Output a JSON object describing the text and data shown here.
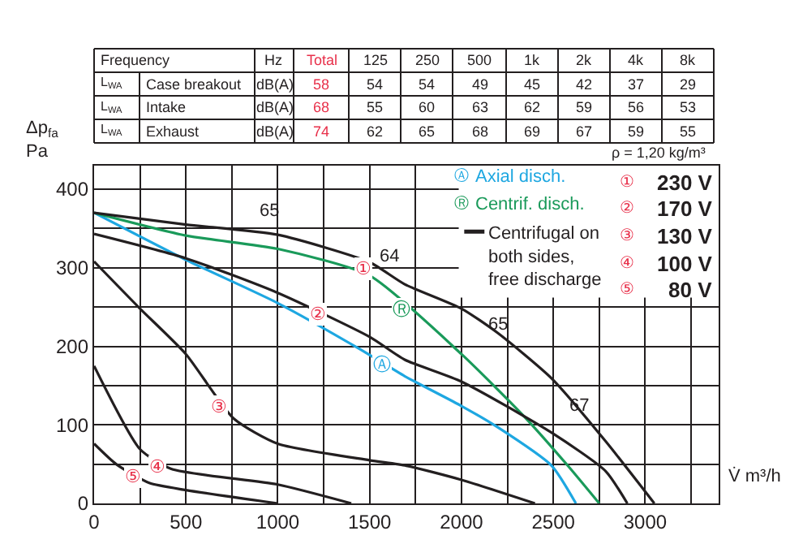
{
  "chart_data": [
    {
      "type": "other",
      "categories": [
        "Frequency",
        null,
        "Hz",
        "Total",
        "125",
        "250",
        "500",
        "1k",
        "2k",
        "4k",
        "8k"
      ],
      "colors": [
        "#231f20",
        "#231f20",
        "#231f20",
        "#e8304a",
        "#231f20",
        "#231f20",
        "#231f20",
        "#231f20",
        "#231f20",
        "#231f20",
        "#231f20"
      ],
      "cells": [
        [
          "L$_{WA}$",
          "Case breakout",
          "dB(A)",
          "58",
          "54",
          "54",
          "49",
          "45",
          "42",
          "37",
          "29"
        ],
        [
          "L$_{WA}$",
          "Intake",
          "dB(A)",
          "68",
          "55",
          "60",
          "63",
          "62",
          "59",
          "56",
          "53"
        ],
        [
          "L$_{WA}$",
          "Exhaust",
          "dB(A)",
          "74",
          "62",
          "65",
          "68",
          "69",
          "67",
          "59",
          "55"
        ]
      ]
    },
    {
      "type": "line",
      "xlabel": "V̇ m³/h",
      "ylabel": "Δp$_{fa}$\nPa",
      "xlim": [
        0,
        3400
      ],
      "ylim": [
        0,
        430
      ],
      "xticks": [
        0,
        {
          "value": 250,
          "label": null
        },
        500,
        {
          "value": 750,
          "label": null
        },
        1000,
        {
          "value": 1250,
          "label": null
        },
        1500,
        {
          "value": 1750,
          "label": null
        },
        2000,
        {
          "value": 2250,
          "label": null
        },
        2500,
        {
          "value": 2750,
          "label": null
        },
        3000,
        {
          "value": 3250,
          "label": null
        }
      ],
      "yticks": [
        0,
        {
          "value": 50,
          "label": null
        },
        100,
        {
          "value": 150,
          "label": null
        },
        200,
        {
          "value": 250,
          "label": null
        },
        300,
        {
          "value": 350,
          "label": null
        },
        400
      ],
      "grid": true,
      "legend": "top right",
      "marker": "none",
      "line_style": "solid",
      "series": [
        {
          "name": "Axial disch.",
          "color": "#1ea7e1",
          "x": [
            0,
            500,
            1000,
            1450,
            1691,
            2000,
            2197,
            2491,
            2623
          ],
          "values": [
            370,
            310,
            255,
            196,
            162,
            124,
            97,
            48,
            0
          ]
        },
        {
          "name": "Centrif. disch.",
          "color": "#1a9a5a",
          "x": [
            0,
            500,
            1000,
            1500,
            2000,
            2344,
            2579,
            2750
          ],
          "values": [
            370,
            341,
            324,
            290,
            190,
            110,
            48,
            0
          ]
        },
        {
          "color": "#231f20",
          "x": [
            0,
            500,
            1000,
            1500,
            1691,
            2000,
            2197,
            2491,
            2785,
            3050
          ],
          "values": [
            370,
            355,
            342,
            307,
            279,
            248,
            217,
            159,
            79,
            0
          ]
        },
        {
          "color": "#231f20",
          "x": [
            0,
            500,
            1000,
            1500,
            1691,
            2000,
            2491,
            2785,
            2903
          ],
          "values": [
            343,
            312,
            268,
            212,
            183,
            155,
            90,
            41,
            0
          ]
        },
        {
          "color": "#231f20",
          "x": [
            0,
            250,
            500,
            760,
            1000,
            1500,
            1700,
            2000,
            2400
          ],
          "values": [
            308,
            248,
            190,
            108,
            76,
            55,
            48,
            30,
            0
          ]
        },
        {
          "color": "#231f20",
          "x": [
            0,
            250,
            420,
            1000,
            1400
          ],
          "values": [
            175,
            69,
            44,
            24,
            0
          ]
        },
        {
          "color": "#231f20",
          "x": [
            0,
            120,
            300,
            500,
            1000
          ],
          "values": [
            76,
            50,
            26,
            17,
            0
          ]
        }
      ],
      "annotations": [
        {
          "text": "Ⓐ",
          "x": 1568,
          "y": 177
        },
        {
          "text": "Ⓡ",
          "x": 1676,
          "y": 248
        },
        {
          "text": "①",
          "x": 1462,
          "y": 298
        },
        {
          "text": "②",
          "x": 1220,
          "y": 240
        },
        {
          "text": "③",
          "x": 676,
          "y": 122
        },
        {
          "text": "④",
          "x": 344,
          "y": 46
        },
        {
          "text": "⑤",
          "x": 215,
          "y": 34
        },
        "65",
        "64",
        "65",
        "67",
        "ρ = 1,20 kg/m³",
        "Centrifugal on\nboth sides,\nfree discharge",
        "① 230 V",
        "② 170 V",
        "③ 130 V",
        "④ 100 V",
        "⑤ 80 V"
      ]
    }
  ]
}
